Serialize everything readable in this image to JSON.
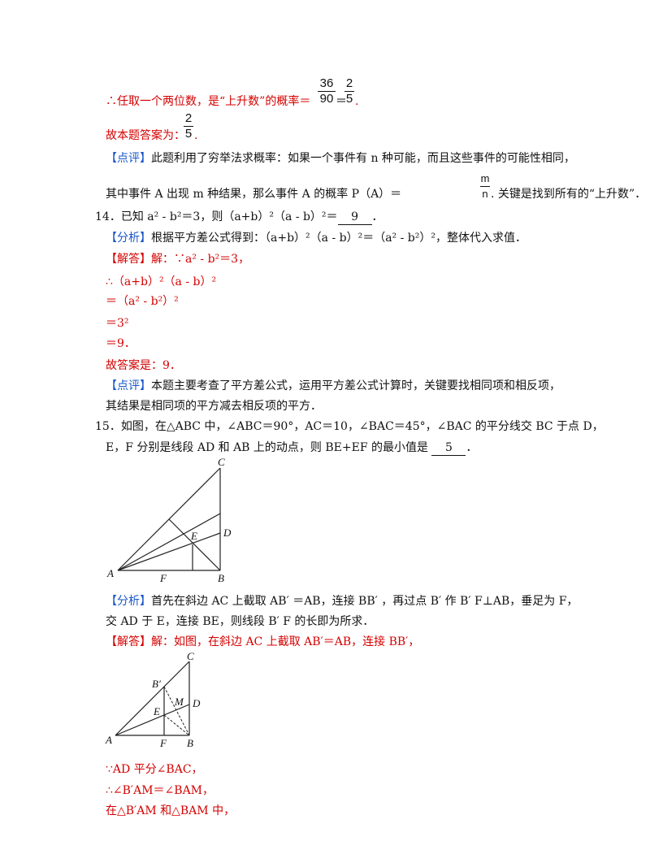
{
  "lines": {
    "l1": "∴任取一个两位数，是“上升数”的概率＝",
    "l1_end": ".",
    "f1a_num": "36",
    "f1a_den": "90",
    "eq": "＝",
    "f1b_num": "2",
    "f1b_den": "5",
    "l2": "故本题答案为：",
    "f2_num": "2",
    "f2_den": "5",
    "l2_end": ".",
    "l3_tag": "【点评】",
    "l3": "此题利用了穷举法求概率：如果一个事件有 n 种可能，而且这些事件的可能性相同，",
    "l4a": "其中事件 A 出现 m 种结果，那么事件 A 的概率 P（A）＝",
    "f3_num": "m",
    "f3_den": "n",
    "l4b": ". 关键是找到所有的“上升数”．",
    "q14": "14．已知 a² - b²＝3，则（a+b）²（a - b）²＝",
    "q14_ans": "9",
    "q14_end": "．",
    "a14_tag": "【分析】",
    "a14": "根据平方差公式得到：（a+b）²（a - b）²＝（a² - b²）²，整体代入求值．",
    "s14_tag": "【解答】",
    "s14_1": "解：∵a² - b²＝3，",
    "s14_2": "∴（a+b）²（a - b）²",
    "s14_3": "＝（a² - b²）²",
    "s14_4": "＝3²",
    "s14_5": "＝9．",
    "s14_6": "故答案是：9．",
    "c14_tag": "【点评】",
    "c14_1": "本题主要考查了平方差公式，运用平方差公式计算时，关键要找相同项和相反项，",
    "c14_2": "其结果是相同项的平方减去相反项的平方．",
    "q15_1": "15．如图，在△ABC 中，∠ABC＝90°，AC＝10，∠BAC＝45°，∠BAC 的平分线交 BC 于点 D，",
    "q15_2": "E，F 分别是线段 AD 和 AB 上的动点，则 BE+EF 的最小值是",
    "q15_ans": "5",
    "q15_end": "．",
    "a15_tag": "【分析】",
    "a15_1": "首先在斜边 AC 上截取 AB′ ＝AB，连接 BB′ ，再过点 B′ 作 B′ F⊥AB，垂足为 F，",
    "a15_2": "交 AD 于 E，连接 BE，则线段 B′ F 的长即为所求．",
    "s15_tag": "【解答】",
    "s15_1": "解：如图，在斜边 AC 上截取 AB′＝AB，连接 BB′，",
    "s15_2": "∵AD 平分∠BAC，",
    "s15_3": "∴∠B′AM＝∠BAM，",
    "s15_4": "在△B′AM 和△BAM 中，"
  },
  "figure1": {
    "labels": [
      "C",
      "D",
      "E",
      "A",
      "F",
      "B"
    ]
  },
  "figure2": {
    "labels": [
      "C",
      "B′",
      "M",
      "D",
      "E",
      "A",
      "F",
      "B"
    ]
  },
  "colors": {
    "solution": "#d40000",
    "tag": "#1a56c8",
    "text": "#111111"
  }
}
